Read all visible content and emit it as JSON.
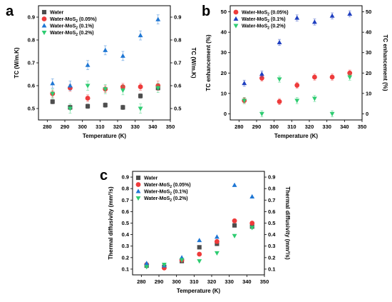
{
  "chart_data": [
    {
      "panel_letter": "a",
      "type": "scatter",
      "xlabel": "Temperature (K)",
      "ylabel": "TC (W/m.K)",
      "ylabel_right": "TC (W/m.K)",
      "xlim": [
        275,
        350
      ],
      "ylim": [
        0.45,
        0.95
      ],
      "xticks": [
        280,
        290,
        300,
        310,
        320,
        330,
        340,
        350
      ],
      "yticks": [
        0.5,
        0.6,
        0.7,
        0.8,
        0.9
      ],
      "ytick_labels": [
        "0.5",
        "0.6",
        "0.7",
        "0.8",
        "0.9"
      ],
      "grid": false,
      "legend_position": "top-left",
      "error_bars": true,
      "series": [
        {
          "name": "Water",
          "marker": "square",
          "color": "#4d4d4d",
          "x": [
            283,
            293,
            303,
            313,
            323,
            333,
            343
          ],
          "values": [
            0.53,
            0.505,
            0.51,
            0.515,
            0.505,
            0.555,
            0.59
          ],
          "errors": [
            0.01,
            0.01,
            0.01,
            0.01,
            0.01,
            0.01,
            0.01
          ]
        },
        {
          "name": "Water-MoS2 (0.05%)",
          "marker": "circle",
          "color": "#ee3b3b",
          "x": [
            283,
            293,
            303,
            313,
            323,
            333,
            343
          ],
          "values": [
            0.565,
            0.59,
            0.545,
            0.585,
            0.595,
            0.595,
            0.6
          ],
          "errors": [
            0.015,
            0.015,
            0.015,
            0.015,
            0.015,
            0.015,
            0.02
          ]
        },
        {
          "name": "Water-MoS2 (0.1%)",
          "marker": "triangle-up",
          "color": "#1f77d4",
          "x": [
            283,
            293,
            303,
            313,
            323,
            333,
            343
          ],
          "values": [
            0.61,
            0.6,
            0.69,
            0.755,
            0.73,
            0.82,
            0.89
          ],
          "errors": [
            0.02,
            0.02,
            0.02,
            0.02,
            0.02,
            0.02,
            0.02
          ]
        },
        {
          "name": "Water-MoS2 (0.2%)",
          "marker": "triangle-down",
          "color": "#2ecc71",
          "x": [
            283,
            293,
            303,
            313,
            323,
            333,
            343
          ],
          "values": [
            0.565,
            0.5,
            0.6,
            0.585,
            0.58,
            0.5,
            0.59
          ],
          "errors": [
            0.02,
            0.02,
            0.02,
            0.02,
            0.02,
            0.02,
            0.02
          ]
        }
      ]
    },
    {
      "panel_letter": "b",
      "type": "scatter",
      "xlabel": "Temperature (K)",
      "ylabel": "TC enhancement (%)",
      "ylabel_right": "TC enhancement (%)",
      "xlim": [
        275,
        350
      ],
      "ylim": [
        -3,
        53
      ],
      "xticks": [
        280,
        290,
        300,
        310,
        320,
        330,
        340,
        350
      ],
      "yticks": [
        0,
        10,
        20,
        30,
        40,
        50
      ],
      "ytick_labels": [
        "0",
        "10",
        "20",
        "30",
        "40",
        "50"
      ],
      "grid": false,
      "legend_position": "top-left",
      "error_bars": true,
      "series": [
        {
          "name": "Water-MoS2 (0.05%)",
          "marker": "circle",
          "color": "#ee3b3b",
          "x": [
            283,
            293,
            303,
            313,
            323,
            333,
            343
          ],
          "values": [
            6.5,
            17.5,
            6,
            14,
            18,
            18,
            20
          ],
          "errors": [
            1.5,
            1.5,
            1.5,
            1.5,
            1.5,
            1.5,
            1.5
          ]
        },
        {
          "name": "Water-MoS2 (0.1%)",
          "marker": "triangle-up",
          "color": "#1f3fc0",
          "x": [
            283,
            293,
            303,
            313,
            323,
            333,
            343
          ],
          "values": [
            15,
            19.5,
            35,
            47,
            45,
            48,
            49
          ],
          "errors": [
            1.5,
            1.5,
            1.5,
            1.5,
            1.5,
            1.5,
            1.5
          ]
        },
        {
          "name": "Water-MoS2 (0.2%)",
          "marker": "triangle-down",
          "color": "#2ecc71",
          "x": [
            283,
            293,
            303,
            313,
            323,
            333,
            343
          ],
          "values": [
            6.5,
            0,
            17,
            6.5,
            7.5,
            0,
            18
          ],
          "errors": [
            1.5,
            1.5,
            1.5,
            1.5,
            1.5,
            1.5,
            1.5
          ]
        }
      ]
    },
    {
      "panel_letter": "c",
      "type": "scatter",
      "xlabel": "Temperature (K)",
      "ylabel": "Thermal diffusivity (mm²/s)",
      "ylabel_right": "Thermal diffusivity (mm²/s)",
      "xlim": [
        275,
        350
      ],
      "ylim": [
        0.05,
        0.95
      ],
      "xticks": [
        280,
        290,
        300,
        310,
        320,
        330,
        340,
        350
      ],
      "yticks": [
        0.1,
        0.2,
        0.3,
        0.4,
        0.5,
        0.6,
        0.7,
        0.8,
        0.9
      ],
      "ytick_labels": [
        "0.1",
        "0.2",
        "0.3",
        "0.4",
        "0.5",
        "0.6",
        "0.7",
        "0.8",
        "0.9"
      ],
      "grid": false,
      "legend_position": "top-left",
      "error_bars": false,
      "series": [
        {
          "name": "Water",
          "marker": "square",
          "color": "#4d4d4d",
          "x": [
            283,
            293,
            303,
            313,
            323,
            333,
            343
          ],
          "values": [
            0.13,
            0.12,
            0.17,
            0.29,
            0.32,
            0.48,
            0.47
          ]
        },
        {
          "name": "Water-MoS2 (0.05%)",
          "marker": "circle",
          "color": "#ee3b3b",
          "x": [
            283,
            293,
            303,
            313,
            323,
            333,
            343
          ],
          "values": [
            0.14,
            0.11,
            0.18,
            0.23,
            0.34,
            0.52,
            0.5
          ]
        },
        {
          "name": "Water-MoS2 (0.1%)",
          "marker": "triangle-up",
          "color": "#1f77d4",
          "x": [
            283,
            293,
            303,
            313,
            323,
            333,
            343
          ],
          "values": [
            0.15,
            0.13,
            0.2,
            0.35,
            0.38,
            0.83,
            0.73
          ]
        },
        {
          "name": "Water-MoS2 (0.2%)",
          "marker": "triangle-down",
          "color": "#2ecc71",
          "x": [
            283,
            293,
            303,
            313,
            323,
            333,
            343
          ],
          "values": [
            0.12,
            0.14,
            0.18,
            0.17,
            0.24,
            0.39,
            0.46
          ]
        }
      ]
    }
  ]
}
